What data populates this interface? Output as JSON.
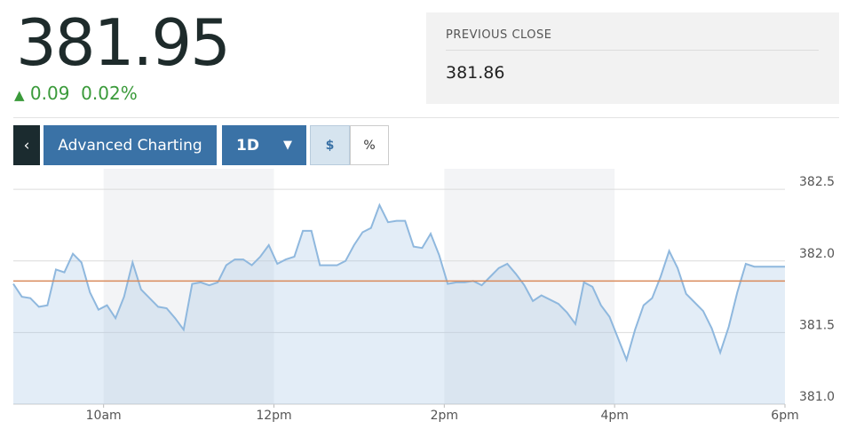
{
  "quote": {
    "price": "381.95",
    "change": "0.09",
    "change_percent": "0.02%",
    "previous_close_label": "PREVIOUS CLOSE",
    "previous_close": 381.86
  },
  "controls": {
    "advanced": "Advanced Charting",
    "range": "1D",
    "dollar": "$",
    "percent": "%"
  },
  "chart_data": {
    "type": "line",
    "x": [
      8.94,
      9.04,
      9.14,
      9.24,
      9.34,
      9.44,
      9.54,
      9.64,
      9.74,
      9.84,
      9.94,
      10.04,
      10.14,
      10.24,
      10.34,
      10.44,
      10.54,
      10.64,
      10.74,
      10.84,
      10.94,
      11.04,
      11.14,
      11.24,
      11.34,
      11.44,
      11.54,
      11.64,
      11.74,
      11.84,
      11.94,
      12.04,
      12.14,
      12.24,
      12.34,
      12.44,
      12.54,
      12.64,
      12.74,
      12.84,
      12.94,
      13.04,
      13.14,
      13.24,
      13.34,
      13.44,
      13.54,
      13.64,
      13.74,
      13.84,
      13.94,
      14.04,
      14.14,
      14.24,
      14.34,
      14.44,
      14.54,
      14.64,
      14.74,
      14.84,
      14.94,
      15.04,
      15.14,
      15.24,
      15.34,
      15.44,
      15.54,
      15.64,
      15.74,
      15.84,
      15.94,
      16.04,
      16.14,
      16.24,
      16.34,
      16.44,
      16.54,
      16.64,
      16.74,
      16.84,
      16.94,
      17.04,
      17.14,
      17.24,
      17.34,
      17.44,
      17.54,
      17.64,
      17.74,
      17.84,
      17.94,
      18
    ],
    "series": [
      {
        "color": "#8fb8de",
        "values": [
          381.84,
          381.75,
          381.74,
          381.68,
          381.69,
          381.94,
          381.92,
          382.05,
          381.99,
          381.78,
          381.66,
          381.69,
          381.6,
          381.75,
          381.99,
          381.8,
          381.74,
          381.68,
          381.67,
          381.6,
          381.52,
          381.84,
          381.85,
          381.83,
          381.85,
          381.97,
          382.01,
          382.01,
          381.97,
          382.03,
          382.11,
          381.98,
          382.01,
          382.03,
          382.21,
          382.21,
          381.97,
          381.97,
          381.97,
          382.0,
          382.11,
          382.2,
          382.23,
          382.39,
          382.27,
          382.28,
          382.28,
          382.1,
          382.09,
          382.19,
          382.04,
          381.84,
          381.85,
          381.85,
          381.86,
          381.83,
          381.89,
          381.95,
          381.98,
          381.91,
          381.83,
          381.72,
          381.76,
          381.73,
          381.7,
          381.64,
          381.56,
          381.85,
          381.82,
          381.69,
          381.61,
          381.46,
          381.31,
          381.52,
          381.69,
          381.74,
          381.89,
          382.07,
          381.95,
          381.77,
          381.71,
          381.65,
          381.53,
          381.36,
          381.54,
          381.78,
          381.98,
          381.96,
          381.96,
          381.96,
          381.96,
          381.96
        ]
      }
    ],
    "reference_color": "#d98a5a",
    "xlim": [
      8.94,
      18
    ],
    "xticks": [
      {
        "value": 10,
        "label": "10am"
      },
      {
        "value": 12,
        "label": "12pm"
      },
      {
        "value": 14,
        "label": "2pm"
      },
      {
        "value": 16,
        "label": "4pm"
      },
      {
        "value": 18,
        "label": "6pm"
      }
    ],
    "ylim": [
      381.0,
      382.6
    ],
    "yticks": [
      {
        "value": 381,
        "label": "381.0"
      },
      381.5,
      {
        "value": 382,
        "label": "382.0"
      },
      382.5
    ],
    "grid": true
  }
}
